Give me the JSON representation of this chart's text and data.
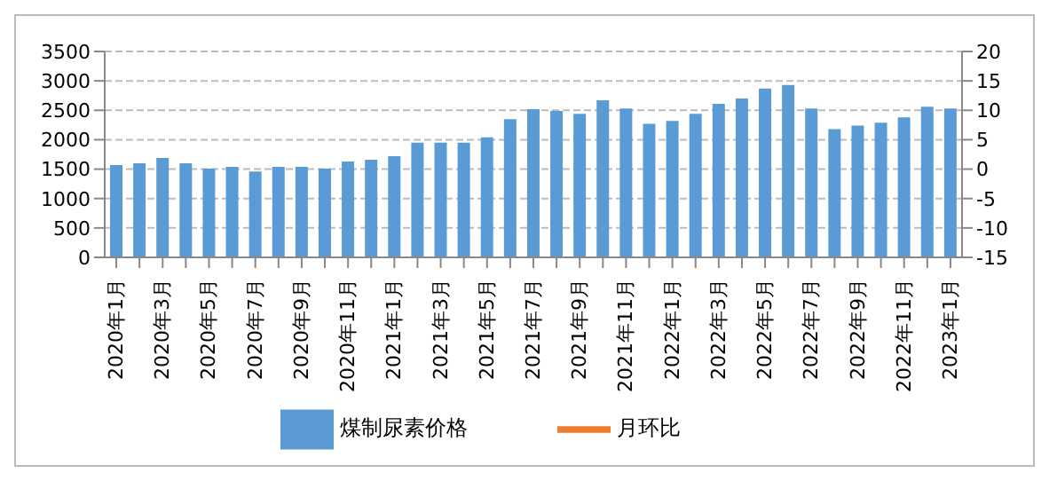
{
  "chart_data": {
    "type": "bar",
    "categories": [
      "2020年1月",
      null,
      "2020年3月",
      null,
      "2020年5月",
      null,
      "2020年7月",
      null,
      "2020年9月",
      null,
      "2020年11月",
      null,
      "2021年1月",
      null,
      "2021年3月",
      null,
      "2021年5月",
      null,
      "2021年7月",
      null,
      "2021年9月",
      null,
      "2021年11月",
      null,
      "2022年1月",
      null,
      "2022年3月",
      null,
      "2022年5月",
      null,
      "2022年7月",
      null,
      "2022年9月",
      null,
      "2022年11月",
      null,
      "2023年1月"
    ],
    "series": [
      {
        "name": "煤制尿素价格",
        "color": "#5b9bd5",
        "values": [
          1570,
          1600,
          1690,
          1600,
          1510,
          1540,
          1460,
          1540,
          1540,
          1510,
          1630,
          1660,
          1720,
          1950,
          1950,
          1950,
          2040,
          2350,
          2520,
          2490,
          2440,
          2670,
          2530,
          2270,
          2320,
          2440,
          2610,
          2700,
          2870,
          2930,
          2530,
          2180,
          2240,
          2290,
          2380,
          2560,
          2530
        ]
      },
      {
        "name": "月环比",
        "type": "line",
        "color": "#ed7d31",
        "values": [
          null,
          null,
          null,
          null,
          null,
          null,
          null,
          null,
          null,
          null,
          null,
          null,
          null,
          null,
          null,
          null,
          null,
          null,
          null,
          null,
          null,
          null,
          null,
          null,
          null,
          null,
          null,
          null,
          null,
          null,
          null,
          null,
          null,
          null,
          null,
          null,
          null
        ]
      }
    ],
    "ylim": [
      0,
      3500
    ],
    "yticks": [
      0,
      500,
      1000,
      1500,
      2000,
      2500,
      3000,
      3500
    ],
    "y2lim": [
      -15,
      20
    ],
    "y2ticks": [
      -15,
      -10,
      -5,
      0,
      5,
      10,
      15,
      20
    ],
    "grid": "y",
    "legend": "bottom"
  }
}
